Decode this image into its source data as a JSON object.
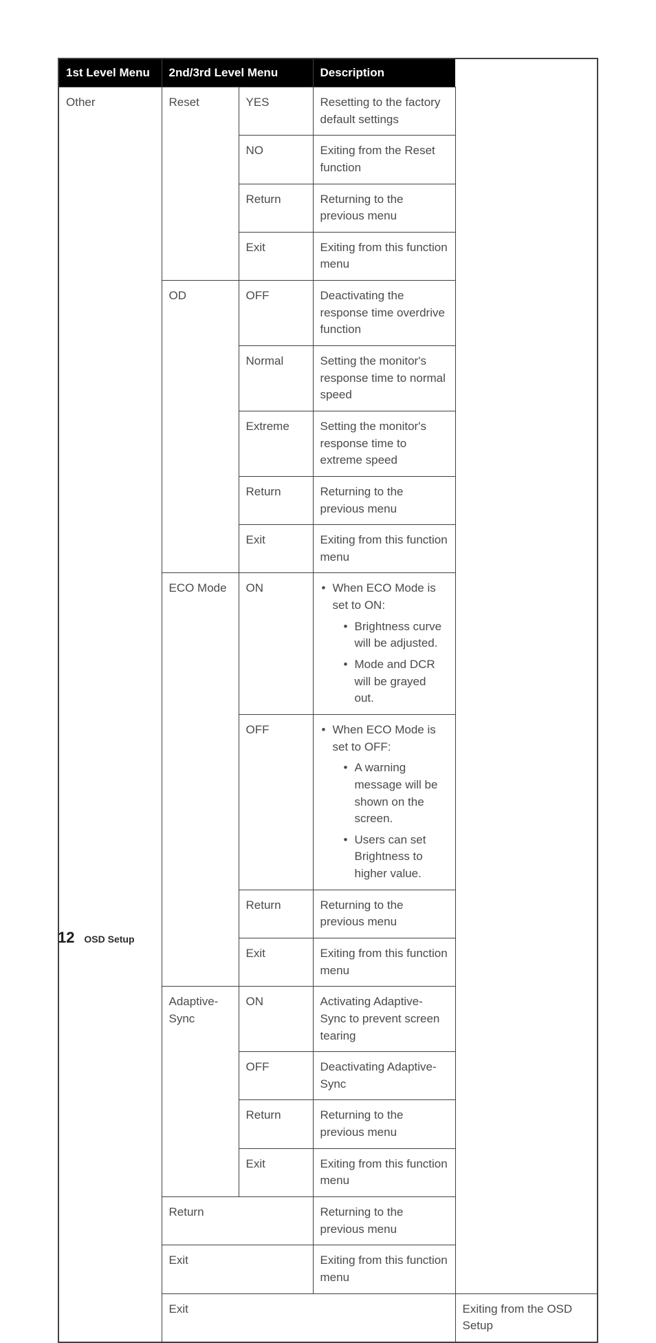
{
  "headers": {
    "col1": "1st Level Menu",
    "col23": "2nd/3rd Level Menu",
    "col4": "Description"
  },
  "other": {
    "label": "Other",
    "reset": {
      "label": "Reset",
      "yes": {
        "label": "YES",
        "desc": "Resetting to the factory default settings"
      },
      "no": {
        "label": "NO",
        "desc": "Exiting from the Reset function"
      },
      "return": {
        "label": "Return",
        "desc": "Returning to the previous menu"
      },
      "exit": {
        "label": "Exit",
        "desc": "Exiting from this function menu"
      }
    },
    "od": {
      "label": "OD",
      "off": {
        "label": "OFF",
        "desc": "Deactivating the response time overdrive function"
      },
      "normal": {
        "label": "Normal",
        "desc": "Setting the monitor's response time to normal speed"
      },
      "extreme": {
        "label": "Extreme",
        "desc": "Setting the monitor's response time to extreme speed"
      },
      "return": {
        "label": "Return",
        "desc": "Returning to the previous menu"
      },
      "exit": {
        "label": "Exit",
        "desc": "Exiting from this function menu"
      }
    },
    "eco": {
      "label": "ECO Mode",
      "on": {
        "label": "ON",
        "line": "When ECO Mode is set to ON:",
        "sub1": "Brightness curve will be adjusted.",
        "sub2": "Mode and DCR will be grayed out."
      },
      "off": {
        "label": "OFF",
        "line": "When ECO Mode is set to OFF:",
        "sub1": "A warning message will be shown on the screen.",
        "sub2": "Users can set Brightness to higher value."
      },
      "return": {
        "label": "Return",
        "desc": "Returning to the previous menu"
      },
      "exit": {
        "label": "Exit",
        "desc": "Exiting from this function menu"
      }
    },
    "adaptive": {
      "label": "Adaptive-Sync",
      "on": {
        "label": "ON",
        "desc": "Activating Adaptive-Sync to prevent screen tearing"
      },
      "off": {
        "label": "OFF",
        "desc": "Deactivating Adaptive-Sync"
      },
      "return": {
        "label": "Return",
        "desc": "Returning to the previous menu"
      },
      "exit": {
        "label": "Exit",
        "desc": "Exiting from this function menu"
      }
    },
    "return": {
      "label": "Return",
      "desc": "Returning to the previous menu"
    },
    "exit": {
      "label": "Exit",
      "desc": "Exiting from this function menu"
    }
  },
  "exit_row": {
    "label": "Exit",
    "desc": "Exiting from the OSD Setup"
  },
  "footer": {
    "page": "12",
    "section": "OSD Setup"
  }
}
